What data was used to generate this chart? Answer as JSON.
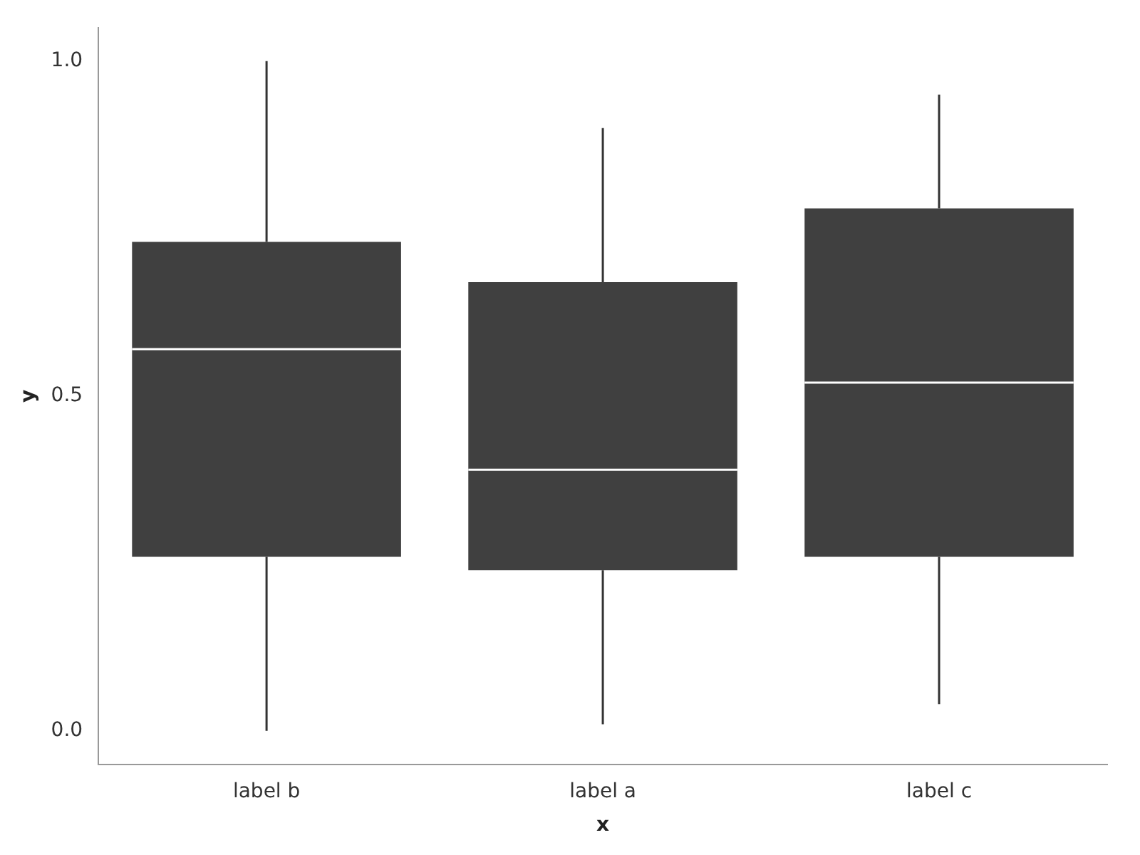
{
  "chart_data": {
    "type": "box",
    "xlabel": "x",
    "ylabel": "y",
    "categories": [
      "label b",
      "label a",
      "label c"
    ],
    "color": "#404040",
    "boxes": [
      {
        "low": 0.0,
        "q1": 0.26,
        "median": 0.57,
        "q3": 0.73,
        "high": 1.0
      },
      {
        "low": 0.01,
        "q1": 0.24,
        "median": 0.39,
        "q3": 0.67,
        "high": 0.9
      },
      {
        "low": 0.04,
        "q1": 0.26,
        "median": 0.52,
        "q3": 0.78,
        "high": 0.95
      }
    ],
    "ylim": [
      -0.05,
      1.05
    ],
    "yticks": [
      {
        "value": 0,
        "label": "0.0"
      },
      {
        "value": 0.5,
        "label": "0.5"
      },
      {
        "value": 1,
        "label": "1.0"
      }
    ],
    "grid": false
  }
}
